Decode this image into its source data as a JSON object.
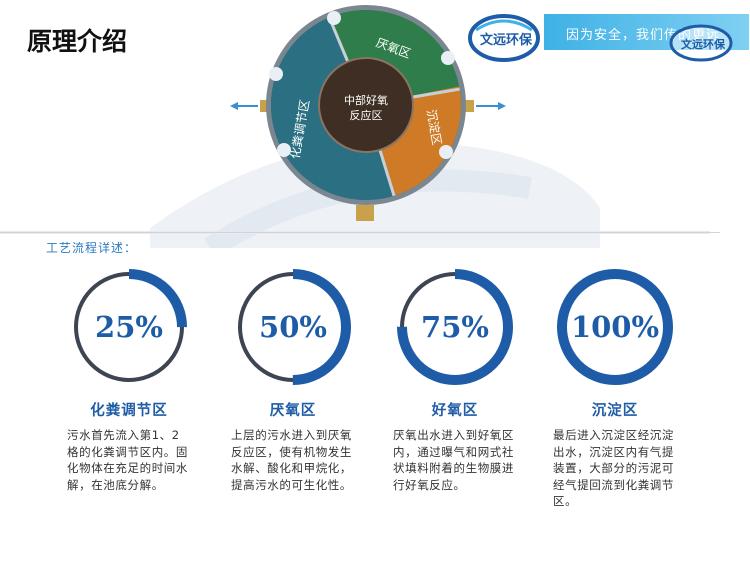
{
  "page_title": "原理介绍",
  "banner": {
    "text": "因为安全，我们传的更远"
  },
  "logo": {
    "text": "文远环保",
    "icon": "wenyuan-logo-icon"
  },
  "diagram": {
    "center_label": "中部好氧\n反应区",
    "zones": [
      "厌氧区",
      "沉淀区",
      "化粪调节区"
    ],
    "colors": {
      "anaerobic": "#2e7d4a",
      "sediment": "#cf7a26",
      "septic": "#2a6f82",
      "center": "#3f2e23"
    }
  },
  "section_heading": "工艺流程详述：",
  "stages": [
    {
      "percent_label": "25%",
      "percent": 25,
      "title": "化粪调节区",
      "description": "污水首先流入第1、2格的化粪调节区内。固化物体在充足的时间水解，在池底分解。"
    },
    {
      "percent_label": "50%",
      "percent": 50,
      "title": "厌氧区",
      "description": "上层的污水进入到厌氧反应区，使有机物发生水解、酸化和甲烷化，提高污水的可生化性。"
    },
    {
      "percent_label": "75%",
      "percent": 75,
      "title": "好氧区",
      "description": "厌氧出水进入到好氧区内，通过曝气和网式社状填料附着的生物膜进行好氧反应。"
    },
    {
      "percent_label": "100%",
      "percent": 100,
      "title": "沉淀区",
      "description": "最后进入沉淀区经沉淀出水，沉淀区内有气提装置，大部分的污泥可经气提回流到化粪调节区。"
    }
  ],
  "colors": {
    "ring": "#1f5ca8",
    "track": "#3d4552",
    "title": "#1f5ca8"
  }
}
